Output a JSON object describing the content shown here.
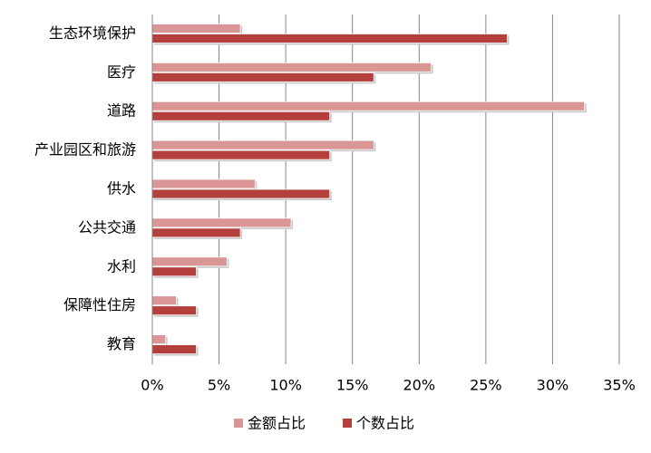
{
  "chart_data": {
    "type": "hbar",
    "categories": [
      "生态环境保护",
      "医疗",
      "道路",
      "产业园区和旅游",
      "供水",
      "公共交通",
      "水利",
      "保障性住房",
      "教育"
    ],
    "series": [
      {
        "name": "金额占比",
        "color": "#d99694",
        "values": [
          6.6,
          20.9,
          32.4,
          16.6,
          7.7,
          10.4,
          5.6,
          1.8,
          1.0
        ]
      },
      {
        "name": "个数占比",
        "color": "#b3403d",
        "values": [
          26.6,
          16.6,
          13.3,
          13.3,
          13.3,
          6.6,
          3.3,
          3.3,
          3.3
        ]
      }
    ],
    "xlim": [
      0,
      35
    ],
    "xticks": [
      {
        "value": 0,
        "label": "0%"
      },
      {
        "value": 5,
        "label": "5%"
      },
      {
        "value": 10,
        "label": "10%"
      },
      {
        "value": 15,
        "label": "15%"
      },
      {
        "value": 20,
        "label": "20%"
      },
      {
        "value": 25,
        "label": "25%"
      },
      {
        "value": 30,
        "label": "30%"
      },
      {
        "value": 35,
        "label": "35%"
      }
    ],
    "grid": true,
    "legend": "bottom"
  }
}
